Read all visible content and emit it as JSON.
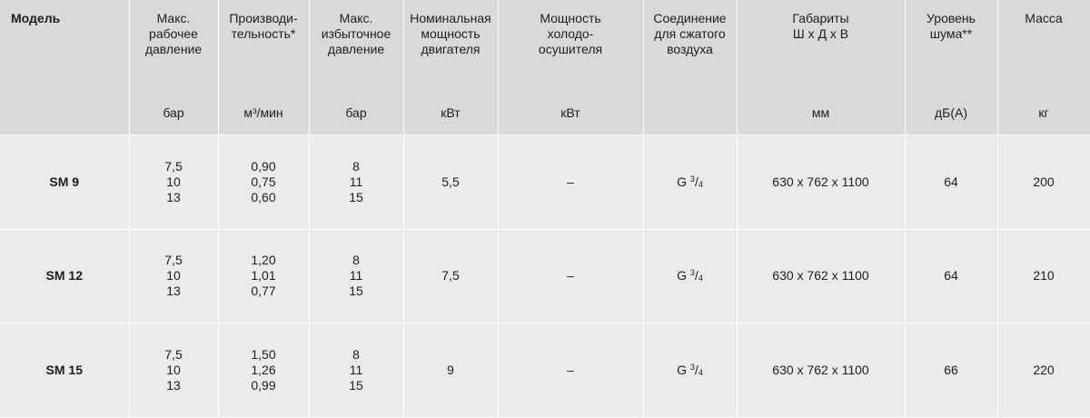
{
  "header": {
    "model": "Модель",
    "col1": {
      "title": "Макс.\nрабочее\nдавление",
      "unit": "бар"
    },
    "col2": {
      "title": "Производи-\nтельность*",
      "unit": "м³/мин"
    },
    "col3": {
      "title": "Макс.\nизбыточное\nдавление",
      "unit": "бар"
    },
    "col4": {
      "title": "Номинальная\nмощность\nдвигателя",
      "unit": "кВт"
    },
    "col5": {
      "title": "Мощность\nхолодо-\nосушителя",
      "unit": "кВт"
    },
    "col6": {
      "title": "Соединение\nдля сжатого\nвоздуха",
      "unit": ""
    },
    "col7": {
      "title": "Габариты\nШ х Д х В",
      "unit": "мм"
    },
    "col8": {
      "title": "Уровень\nшума**",
      "unit": "дБ(А)"
    },
    "col9": {
      "title": "Масса",
      "unit": "кг"
    }
  },
  "rows": [
    {
      "model": "SM 9",
      "pressure": "7,5\n10\n13",
      "capacity": "0,90\n0,75\n0,60",
      "overpressure": "8\n11\n15",
      "motor": "5,5",
      "dryer": "–",
      "conn_prefix": "G ",
      "conn_num": "3",
      "conn_den": "4",
      "dims": "630 x 762 x 1100",
      "noise": "64",
      "mass": "200"
    },
    {
      "model": "SM 12",
      "pressure": "7,5\n10\n13",
      "capacity": "1,20\n1,01\n0,77",
      "overpressure": "8\n11\n15",
      "motor": "7,5",
      "dryer": "–",
      "conn_prefix": "G ",
      "conn_num": "3",
      "conn_den": "4",
      "dims": "630 x 762 x 1100",
      "noise": "64",
      "mass": "210"
    },
    {
      "model": "SM 15",
      "pressure": "7,5\n10\n13",
      "capacity": "1,50\n1,26\n0,99",
      "overpressure": "8\n11\n15",
      "motor": "9",
      "dryer": "–",
      "conn_prefix": "G ",
      "conn_num": "3",
      "conn_den": "4",
      "dims": "630 x 762 x 1100",
      "noise": "66",
      "mass": "220"
    }
  ]
}
